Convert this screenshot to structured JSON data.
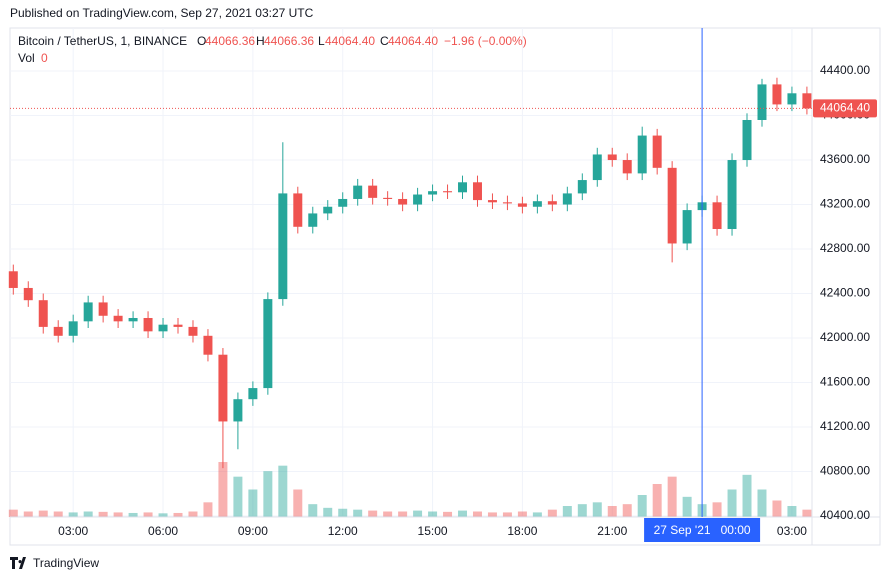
{
  "header": {
    "published": "Published on TradingView.com, Sep 27, 2021 03:27 UTC"
  },
  "legend": {
    "symbol": "Bitcoin / TetherUS, 1, BINANCE",
    "o_key": "O",
    "o": "44066.36",
    "h_key": "H",
    "h": "44066.36",
    "l_key": "L",
    "l": "44064.40",
    "c_key": "C",
    "c": "44064.40",
    "change": "−1.96 (−0.00%)",
    "vol_key": "Vol",
    "vol": "0"
  },
  "footer": {
    "brand": "TradingView"
  },
  "chart_data": {
    "type": "candlestick",
    "colors": {
      "up": "#26a69a",
      "down": "#ef5350"
    },
    "x": [
      1.0,
      1.5,
      2.0,
      2.5,
      3.0,
      3.5,
      4.0,
      4.5,
      5.0,
      5.5,
      6.0,
      6.5,
      7.0,
      7.5,
      8.0,
      8.5,
      9.0,
      9.5,
      10.0,
      10.5,
      11.0,
      11.5,
      12.0,
      12.5,
      13.0,
      13.5,
      14.0,
      14.5,
      15.0,
      15.5,
      16.0,
      16.5,
      17.0,
      17.5,
      18.0,
      18.5,
      19.0,
      19.5,
      20.0,
      20.5,
      21.0,
      21.5,
      22.0,
      22.5,
      23.0,
      23.5,
      24.0,
      24.5,
      25.0,
      25.5,
      26.0,
      26.5,
      27.0,
      27.5
    ],
    "open": [
      42600,
      42450,
      42340,
      42100,
      42020,
      42150,
      42320,
      42200,
      42150,
      42180,
      42060,
      42120,
      42100,
      42020,
      41850,
      41250,
      41450,
      41550,
      42350,
      43300,
      43000,
      43120,
      43180,
      43250,
      43370,
      43260,
      43250,
      43200,
      43290,
      43320,
      43310,
      43400,
      43240,
      43220,
      43210,
      43180,
      43230,
      43200,
      43300,
      43420,
      43650,
      43600,
      43480,
      43820,
      43530,
      42850,
      43150,
      43220,
      42980,
      43600,
      43960,
      44280,
      44100,
      44200
    ],
    "high": [
      42660,
      42510,
      42400,
      42160,
      42210,
      42380,
      42380,
      42260,
      42240,
      42240,
      42180,
      42180,
      42160,
      42080,
      41910,
      41510,
      41610,
      42410,
      43760,
      43360,
      43180,
      43240,
      43310,
      43430,
      43430,
      43320,
      43310,
      43350,
      43380,
      43380,
      43460,
      43460,
      43300,
      43280,
      43270,
      43290,
      43290,
      43360,
      43480,
      43710,
      43710,
      43660,
      43900,
      43880,
      43590,
      43210,
      43280,
      43280,
      43660,
      44020,
      44330,
      44340,
      44260,
      44260
    ],
    "low": [
      42390,
      42280,
      42040,
      41960,
      41960,
      42090,
      42140,
      42090,
      42090,
      42000,
      42000,
      42040,
      41960,
      41790,
      40830,
      41000,
      41390,
      41490,
      42290,
      42940,
      42940,
      43060,
      43120,
      43190,
      43200,
      43190,
      43140,
      43140,
      43230,
      43250,
      43250,
      43180,
      43160,
      43150,
      43120,
      43120,
      43140,
      43140,
      43240,
      43360,
      43540,
      43420,
      43420,
      43470,
      42680,
      42790,
      43090,
      42920,
      42920,
      43540,
      43900,
      44040,
      44040,
      44010
    ],
    "close": [
      42450,
      42340,
      42100,
      42020,
      42150,
      42320,
      42200,
      42150,
      42180,
      42060,
      42120,
      42100,
      42020,
      41850,
      41250,
      41450,
      41550,
      42350,
      43300,
      43000,
      43120,
      43180,
      43250,
      43370,
      43260,
      43250,
      43200,
      43290,
      43320,
      43310,
      43400,
      43240,
      43220,
      43210,
      43180,
      43230,
      43200,
      43300,
      43420,
      43650,
      43600,
      43480,
      43820,
      43530,
      42850,
      43150,
      43220,
      42980,
      43600,
      43960,
      44280,
      44100,
      44200,
      44064.4
    ],
    "volume": [
      40,
      30,
      35,
      30,
      25,
      30,
      28,
      25,
      22,
      25,
      20,
      22,
      30,
      80,
      300,
      220,
      150,
      250,
      280,
      150,
      70,
      50,
      45,
      40,
      35,
      30,
      30,
      35,
      30,
      28,
      35,
      30,
      25,
      25,
      30,
      25,
      40,
      60,
      70,
      80,
      60,
      70,
      120,
      180,
      220,
      110,
      70,
      80,
      150,
      230,
      150,
      90,
      60,
      40
    ],
    "xlim": [
      0.89,
      27.67
    ],
    "ylim": [
      40391,
      44787
    ],
    "xticks": [
      {
        "value": 3,
        "label": "03:00"
      },
      {
        "value": 6,
        "label": "06:00"
      },
      {
        "value": 9,
        "label": "09:00"
      },
      {
        "value": 12,
        "label": "12:00"
      },
      {
        "value": 15,
        "label": "15:00"
      },
      {
        "value": 18,
        "label": "18:00"
      },
      {
        "value": 21,
        "label": "21:00"
      },
      {
        "value": 27,
        "label": "03:00"
      }
    ],
    "yticks": [
      {
        "value": 40400,
        "label": "40400.00"
      },
      {
        "value": 40800,
        "label": "40800.00"
      },
      {
        "value": 41200,
        "label": "41200.00"
      },
      {
        "value": 41600,
        "label": "41600.00"
      },
      {
        "value": 42000,
        "label": "42000.00"
      },
      {
        "value": 42400,
        "label": "42400.00"
      },
      {
        "value": 42800,
        "label": "42800.00"
      },
      {
        "value": 43200,
        "label": "43200.00"
      },
      {
        "value": 43600,
        "label": "43600.00"
      },
      {
        "value": 44000,
        "label": "44000.00"
      },
      {
        "value": 44400,
        "label": "44400.00"
      }
    ],
    "last_price": {
      "value": 44064.4,
      "label": "44064.40"
    },
    "crosshair": {
      "x": 24,
      "label": "27 Sep '21   00:00",
      "color": "#2962ff"
    },
    "grid": true
  }
}
